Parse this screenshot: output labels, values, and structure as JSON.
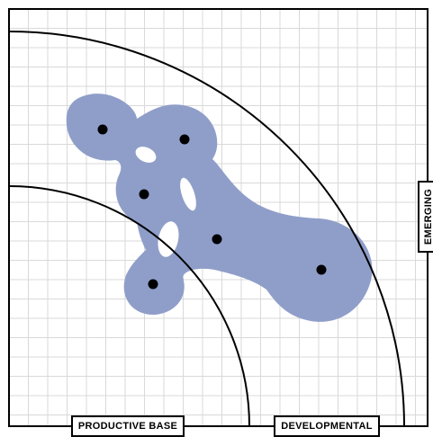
{
  "zone_labels": {
    "productive_base": "PRODUCTIVE BASE",
    "developmental": "DEVELOPMENTAL",
    "emerging": "EMERGING"
  },
  "colors": {
    "blob_fill": "#8f9ec9",
    "grid_line": "#d9d9d9",
    "frame": "#000000",
    "dot": "#000000"
  },
  "node_count": 6
}
